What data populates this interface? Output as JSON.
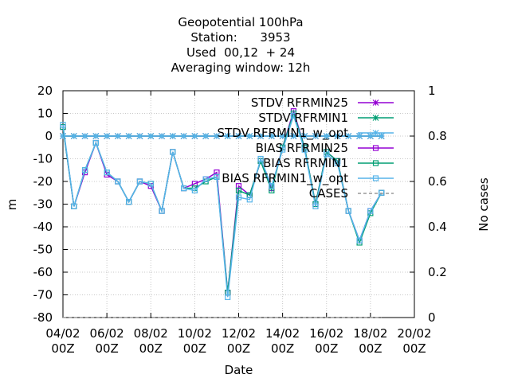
{
  "chart_data": {
    "type": "line",
    "title_lines": [
      "Geopotential 100hPa",
      "Station:      3953",
      "Used  00,12  + 24",
      "Averaging window: 12h"
    ],
    "xlabel": "Date",
    "ylabel": "m",
    "y2label": "No cases",
    "ylim": [
      -80,
      20
    ],
    "y2lim": [
      0,
      1
    ],
    "yticks": [
      20,
      10,
      0,
      -10,
      -20,
      -30,
      -40,
      -50,
      -60,
      -70,
      -80
    ],
    "y2ticks": [
      "1",
      "0.8",
      "0.6",
      "0.4",
      "0.2",
      "0"
    ],
    "xticks": [
      {
        "day": 0,
        "line1": "04/02",
        "line2": "00Z"
      },
      {
        "day": 2,
        "line1": "06/02",
        "line2": "00Z"
      },
      {
        "day": 4,
        "line1": "08/02",
        "line2": "00Z"
      },
      {
        "day": 6,
        "line1": "10/02",
        "line2": "00Z"
      },
      {
        "day": 8,
        "line1": "12/02",
        "line2": "00Z"
      },
      {
        "day": 10,
        "line1": "14/02",
        "line2": "00Z"
      },
      {
        "day": 12,
        "line1": "16/02",
        "line2": "00Z"
      },
      {
        "day": 14,
        "line1": "18/02",
        "line2": "00Z"
      },
      {
        "day": 16,
        "line1": "20/02",
        "line2": "00Z"
      }
    ],
    "xlim": [
      0,
      16
    ],
    "grid": true,
    "legend_position": "top-right",
    "series": [
      {
        "name": "STDV RFRMIN25",
        "color": "#9400d3",
        "marker": "star",
        "style": "solid",
        "x": [
          0,
          0.5,
          1,
          1.5,
          2,
          2.5,
          3,
          3.5,
          4,
          4.5,
          5,
          5.5,
          6,
          6.5,
          7,
          7.5,
          8,
          8.5,
          9,
          9.5,
          10,
          10.5,
          11,
          11.5,
          12,
          12.5,
          13,
          13.5,
          14,
          14.5
        ],
        "y": [
          0,
          0,
          0,
          0,
          0,
          0,
          0,
          0,
          0,
          0,
          0,
          0,
          0,
          0,
          0,
          0,
          0,
          0,
          0,
          0,
          0,
          0,
          0,
          0,
          0,
          0,
          0,
          0,
          0,
          0
        ]
      },
      {
        "name": "STDV RFRMIN1",
        "color": "#009e73",
        "marker": "star",
        "style": "solid",
        "x": [
          0,
          0.5,
          1,
          1.5,
          2,
          2.5,
          3,
          3.5,
          4,
          4.5,
          5,
          5.5,
          6,
          6.5,
          7,
          7.5,
          8,
          8.5,
          9,
          9.5,
          10,
          10.5,
          11,
          11.5,
          12,
          12.5,
          13,
          13.5,
          14,
          14.5
        ],
        "y": [
          0,
          0,
          0,
          0,
          0,
          0,
          0,
          0,
          0,
          0,
          0,
          0,
          0,
          0,
          0,
          0,
          0,
          0,
          0,
          0,
          0,
          0,
          0,
          0,
          0,
          0,
          0,
          0,
          0,
          0
        ]
      },
      {
        "name": "STDV RFRMIN1_w_opt",
        "color": "#56b4e9",
        "marker": "star",
        "style": "solid",
        "x": [
          0,
          0.5,
          1,
          1.5,
          2,
          2.5,
          3,
          3.5,
          4,
          4.5,
          5,
          5.5,
          6,
          6.5,
          7,
          7.5,
          8,
          8.5,
          9,
          9.5,
          10,
          10.5,
          11,
          11.5,
          12,
          12.5,
          13,
          13.5,
          14,
          14.5
        ],
        "y": [
          0,
          0,
          0,
          0,
          0,
          0,
          0,
          0,
          0,
          0,
          0,
          0,
          0,
          0,
          0,
          0,
          0,
          0,
          0,
          0,
          0,
          0,
          0,
          0,
          0,
          0,
          0,
          0,
          0,
          0
        ]
      },
      {
        "name": "BIAS RFRMIN25",
        "color": "#9400d3",
        "marker": "square",
        "style": "solid",
        "x": [
          0,
          0.5,
          1,
          1.5,
          2,
          2.5,
          3,
          3.5,
          4,
          4.5,
          5,
          5.5,
          6,
          6.5,
          7,
          7.5,
          8,
          8.5,
          9,
          9.5,
          10,
          10.5,
          11,
          11.5,
          12,
          12.5,
          13,
          13.5,
          14,
          14.5
        ],
        "y": [
          4,
          -31,
          -16,
          -3,
          -17,
          -20,
          -29,
          -20,
          -22,
          -33,
          -7,
          -23,
          -21,
          -19,
          -16,
          -69,
          -22,
          -26,
          -11,
          -23,
          -5,
          11,
          -5,
          -30,
          -7,
          -11,
          -33,
          -46,
          -33,
          -25
        ]
      },
      {
        "name": "BIAS RFRMIN1",
        "color": "#009e73",
        "marker": "square",
        "style": "solid",
        "x": [
          0,
          0.5,
          1,
          1.5,
          2,
          2.5,
          3,
          3.5,
          4,
          4.5,
          5,
          5.5,
          6,
          6.5,
          7,
          7.5,
          8,
          8.5,
          9,
          9.5,
          10,
          10.5,
          11,
          11.5,
          12,
          12.5,
          13,
          13.5,
          14,
          14.5
        ],
        "y": [
          4,
          -31,
          -15,
          -3,
          -16,
          -20,
          -29,
          -20,
          -21,
          -33,
          -7,
          -23,
          -23,
          -20,
          -18,
          -69,
          -24,
          -26,
          -11,
          -24,
          -5,
          10,
          -5,
          -30,
          -7,
          -11,
          -33,
          -47,
          -34,
          -25
        ]
      },
      {
        "name": "BIAS RFRMIN1_w_opt",
        "color": "#56b4e9",
        "marker": "square",
        "style": "solid",
        "x": [
          0,
          0.5,
          1,
          1.5,
          2,
          2.5,
          3,
          3.5,
          4,
          4.5,
          5,
          5.5,
          6,
          6.5,
          7,
          7.5,
          8,
          8.5,
          9,
          9.5,
          10,
          10.5,
          11,
          11.5,
          12,
          12.5,
          13,
          13.5,
          14,
          14.5
        ],
        "y": [
          5,
          -31,
          -15,
          -3,
          -16,
          -20,
          -29,
          -20,
          -21,
          -33,
          -7,
          -23,
          -24,
          -19,
          -18,
          -71,
          -27,
          -28,
          -10,
          -22,
          -6,
          9,
          -6,
          -31,
          -8,
          -12,
          -33,
          -46,
          -33,
          -25
        ]
      },
      {
        "name": "CASES",
        "color": "#999999",
        "marker": "none",
        "style": "dashed",
        "x": [
          0,
          0.5,
          1,
          1.5,
          2,
          2.5,
          3,
          3.5,
          4,
          4.5,
          5,
          5.5,
          6,
          6.5,
          7,
          7.5,
          8,
          8.5,
          9,
          9.5,
          10,
          10.5,
          11,
          11.5,
          12,
          12.5,
          13,
          13.5,
          14,
          14.5
        ],
        "y": [
          0,
          0,
          0,
          0,
          0,
          0,
          0,
          0,
          0,
          0,
          0,
          0,
          0,
          0,
          0,
          0,
          0,
          0,
          0,
          0,
          0,
          0,
          0,
          0,
          0,
          0,
          0,
          0,
          0,
          0
        ]
      }
    ]
  }
}
